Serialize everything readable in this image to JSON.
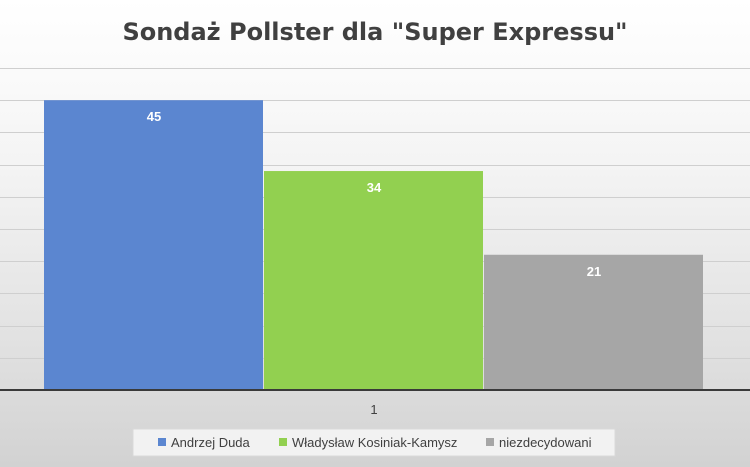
{
  "chart_data": {
    "type": "bar",
    "title": "Sondaż Pollster dla \"Super Expressu\"",
    "categories": [
      "1"
    ],
    "series": [
      {
        "name": "Andrzej Duda",
        "values": [
          45
        ],
        "color": "#5b86d0"
      },
      {
        "name": "Władysław Kosiniak-Kamysz",
        "values": [
          34
        ],
        "color": "#92d050"
      },
      {
        "name": "niezdecydowani",
        "values": [
          21
        ],
        "color": "#a6a6a6"
      }
    ],
    "ylim": [
      0,
      50
    ],
    "grid": true,
    "data_labels": true,
    "legend": "bottom"
  }
}
